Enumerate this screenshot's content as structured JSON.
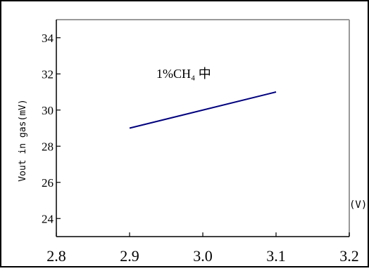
{
  "chart_data": {
    "type": "line",
    "title": "1%CH₄ 中",
    "xlabel": "(V)",
    "ylabel": "Vout in gas(mV)",
    "xlim": [
      2.8,
      3.2
    ],
    "ylim": [
      23,
      35
    ],
    "x_ticks": [
      2.8,
      2.9,
      3.0,
      3.1,
      3.2
    ],
    "x_tick_labels": [
      "2.8",
      "2.9",
      "3.0",
      "3.1",
      "3.2"
    ],
    "y_ticks": [
      24,
      26,
      28,
      30,
      32,
      34
    ],
    "y_tick_labels": [
      "24",
      "26",
      "28",
      "30",
      "32",
      "34"
    ],
    "grid": false,
    "series": [
      {
        "color": "#00007f",
        "x": [
          2.9,
          3.1
        ],
        "y": [
          29.0,
          31.0
        ]
      }
    ]
  }
}
